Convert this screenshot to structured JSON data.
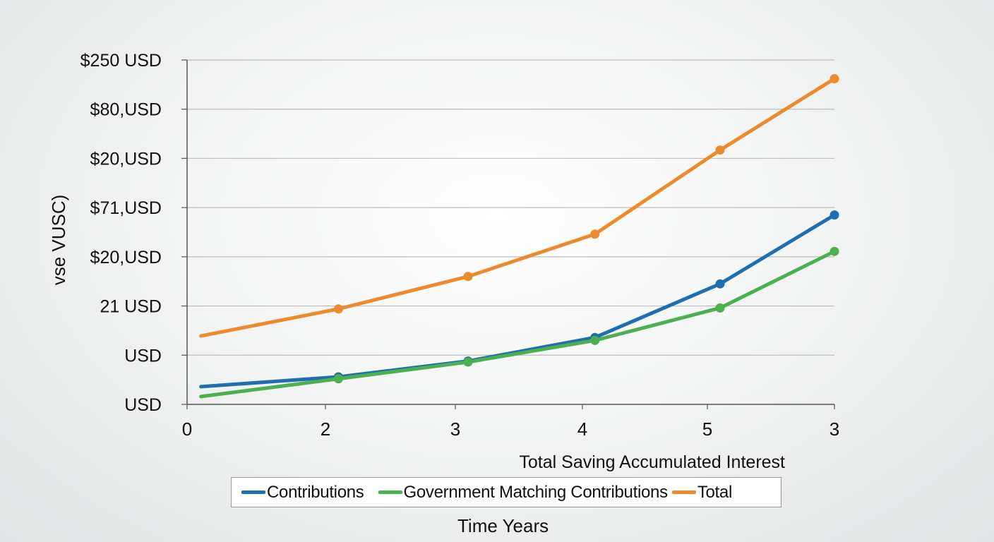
{
  "chart_data": {
    "type": "line",
    "title": "",
    "subtitle": "Total Saving Accumulated Interest",
    "xlabel": "Time Years",
    "ylabel": "vse VUSC)",
    "categories": [
      "0",
      "2",
      "3",
      "4",
      "5",
      "3"
    ],
    "y_tick_labels": [
      "USD",
      "USD",
      "21 USD",
      "$20,USD",
      "$71,USD",
      "$20,USD",
      "$80,USD",
      "$250 USD"
    ],
    "ylim": [
      0,
      7
    ],
    "grid": true,
    "legend_position": "bottom",
    "series": [
      {
        "name": "Contributions",
        "color": "#1f6fb0",
        "x": [
          0.1,
          1.1,
          2.1,
          3.1,
          4.1,
          5.1
        ],
        "values": [
          0.36,
          0.56,
          0.88,
          1.36,
          2.45,
          3.85
        ],
        "markers": [
          false,
          true,
          true,
          true,
          true,
          true
        ]
      },
      {
        "name": "Government Matching Contributions",
        "color": "#4caf50",
        "x": [
          0.1,
          1.1,
          2.1,
          3.1,
          4.1,
          5.1
        ],
        "values": [
          0.16,
          0.52,
          0.86,
          1.3,
          1.96,
          3.11
        ],
        "markers": [
          false,
          true,
          true,
          true,
          true,
          true
        ]
      },
      {
        "name": "Total",
        "color": "#ee8a2e",
        "x": [
          0.1,
          1.1,
          2.1,
          3.1,
          4.1,
          5.1
        ],
        "values": [
          1.39,
          1.94,
          2.6,
          3.46,
          5.17,
          6.62
        ],
        "markers": [
          false,
          true,
          true,
          true,
          true,
          true
        ]
      }
    ]
  }
}
